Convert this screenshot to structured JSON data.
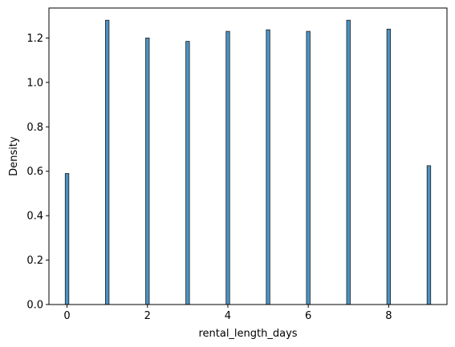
{
  "chart_data": {
    "type": "bar",
    "title": "",
    "xlabel": "rental_length_days",
    "ylabel": "Density",
    "xlim": [
      -0.45,
      9.45
    ],
    "ylim": [
      0.0,
      1.335
    ],
    "x_ticks": [
      0,
      2,
      4,
      6,
      8
    ],
    "y_ticks": [
      0.0,
      0.2,
      0.4,
      0.6,
      0.8,
      1.0,
      1.2
    ],
    "bin_width": 0.09,
    "grid": false,
    "legend": "none",
    "bar_color": "#4c92c3",
    "edge_color": "#1f1f1f",
    "bars": [
      {
        "x": 0,
        "value": 0.59
      },
      {
        "x": 1,
        "value": 1.28
      },
      {
        "x": 2,
        "value": 1.2
      },
      {
        "x": 3,
        "value": 1.185
      },
      {
        "x": 4,
        "value": 1.23
      },
      {
        "x": 5,
        "value": 1.237
      },
      {
        "x": 6,
        "value": 1.23
      },
      {
        "x": 7,
        "value": 1.28
      },
      {
        "x": 8,
        "value": 1.24
      },
      {
        "x": 9,
        "value": 0.625
      }
    ]
  }
}
